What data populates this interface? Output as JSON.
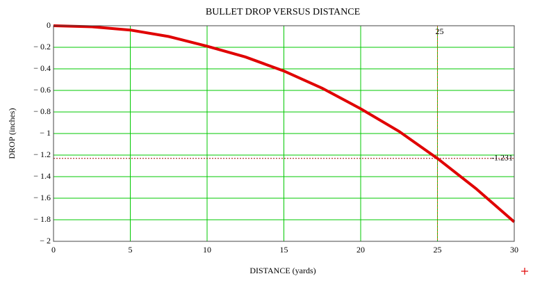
{
  "chart_data": {
    "type": "line",
    "title": "BULLET DROP VERSUS DISTANCE",
    "x_label": "DISTANCE (yards)",
    "y_label": "DROP (inches)",
    "x": [
      0,
      2.5,
      5,
      7.5,
      10,
      12.5,
      15,
      17.5,
      20,
      22.5,
      25,
      27.5,
      30
    ],
    "series": [
      {
        "name": "drop",
        "color": "#e00000",
        "values": [
          0,
          -0.01,
          -0.04,
          -0.1,
          -0.19,
          -0.29,
          -0.42,
          -0.58,
          -0.77,
          -0.98,
          -1.231,
          -1.51,
          -1.82
        ]
      }
    ],
    "xlim": [
      0,
      30
    ],
    "ylim": [
      -2,
      0
    ],
    "xticks": [
      0,
      5,
      10,
      15,
      20,
      25,
      30
    ],
    "yticks": [
      0,
      {
        "value": -0.2,
        "label": "− 0.2"
      },
      {
        "value": -0.4,
        "label": "− 0.4"
      },
      {
        "value": -0.6,
        "label": "− 0.6"
      },
      {
        "value": -0.8,
        "label": "− 0.8"
      },
      {
        "value": -1,
        "label": "− 1"
      },
      {
        "value": -1.2,
        "label": "− 1.2"
      },
      {
        "value": -1.4,
        "label": "− 1.4"
      },
      {
        "value": -1.6,
        "label": "− 1.6"
      },
      {
        "value": -1.8,
        "label": "− 1.8"
      },
      {
        "value": -2,
        "label": "− 2"
      }
    ],
    "grid": true,
    "grid_color": "#00c800",
    "x_marker": {
      "value": 25,
      "label": "25",
      "color": "#b06000"
    },
    "y_marker": {
      "value": -1.231,
      "label": "-1.231",
      "color": "#a00000"
    }
  }
}
